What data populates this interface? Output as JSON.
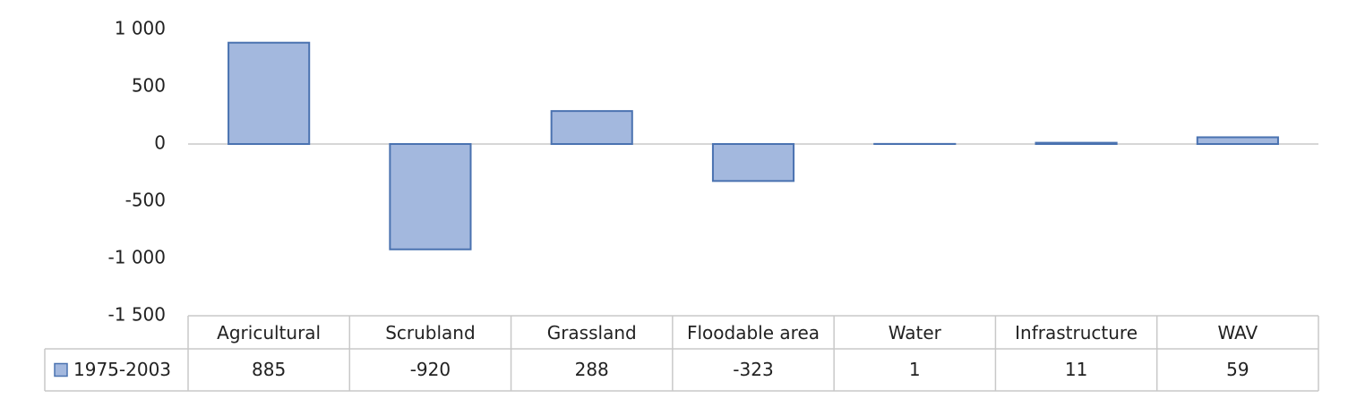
{
  "chart_data": {
    "type": "bar",
    "categories": [
      "Agricultural",
      "Scrubland",
      "Grassland",
      "Floodable area",
      "Water",
      "Infrastructure",
      "WAV"
    ],
    "series": [
      {
        "name": "1975-2003",
        "color": "#a3b8de",
        "values": [
          885,
          -920,
          288,
          -323,
          1,
          11,
          59
        ]
      }
    ],
    "ylim": [
      -1500,
      1000
    ],
    "yticks": [
      {
        "value": -1500,
        "label": "-1 500"
      },
      {
        "value": -1000,
        "label": "-1 000"
      },
      -500,
      0,
      500,
      {
        "value": 1000,
        "label": "1 000"
      }
    ],
    "grid": false
  }
}
